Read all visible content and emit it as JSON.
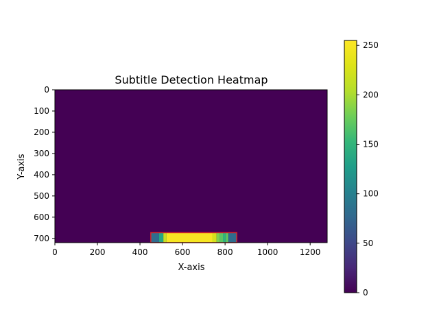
{
  "chart_data": {
    "type": "heatmap",
    "title": "Subtitle Detection Heatmap",
    "xlabel": "X-axis",
    "ylabel": "Y-axis",
    "xlim": [
      0,
      1280
    ],
    "ylim": [
      720,
      0
    ],
    "x_ticks": [
      0,
      200,
      400,
      600,
      800,
      1000,
      1200
    ],
    "y_ticks": [
      0,
      100,
      200,
      300,
      400,
      500,
      600,
      700
    ],
    "background_value": 0,
    "colormap": "viridis",
    "colorbar": {
      "range": [
        0,
        255
      ],
      "ticks": [
        0,
        50,
        100,
        150,
        200,
        250
      ]
    },
    "band": {
      "y_range": [
        673,
        720
      ],
      "segments": [
        {
          "x0": 451,
          "x1": 490,
          "value": 80
        },
        {
          "x0": 490,
          "x1": 510,
          "value": 135
        },
        {
          "x0": 510,
          "x1": 525,
          "value": 215
        },
        {
          "x0": 525,
          "x1": 740,
          "value": 250
        },
        {
          "x0": 740,
          "x1": 760,
          "value": 225
        },
        {
          "x0": 760,
          "x1": 775,
          "value": 185
        },
        {
          "x0": 775,
          "x1": 790,
          "value": 170
        },
        {
          "x0": 790,
          "x1": 805,
          "value": 150
        },
        {
          "x0": 805,
          "x1": 815,
          "value": 175
        },
        {
          "x0": 815,
          "x1": 855,
          "value": 80
        }
      ],
      "outline_color": "#d62728"
    }
  }
}
